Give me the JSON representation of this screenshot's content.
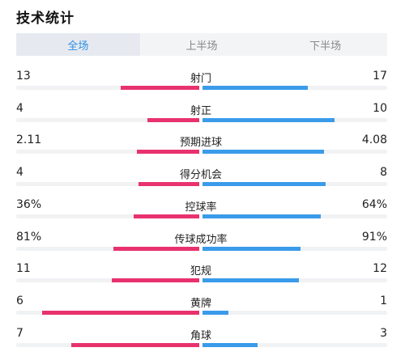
{
  "header": {
    "title": "技术统计"
  },
  "tabs": [
    {
      "label": "全场",
      "active": true
    },
    {
      "label": "上半场",
      "active": false
    },
    {
      "label": "下半场",
      "active": false
    }
  ],
  "colors": {
    "home": "#e8326e",
    "away": "#3a9bea",
    "active_tab": "#2f8fe6"
  },
  "stats": [
    {
      "label": "射门",
      "home": "13",
      "away": "17",
      "home_fill": 0.43,
      "away_fill": 0.57
    },
    {
      "label": "射正",
      "home": "4",
      "away": "10",
      "home_fill": 0.285,
      "away_fill": 0.715
    },
    {
      "label": "预期进球",
      "home": "2.11",
      "away": "4.08",
      "home_fill": 0.34,
      "away_fill": 0.66
    },
    {
      "label": "得分机会",
      "home": "4",
      "away": "8",
      "home_fill": 0.333,
      "away_fill": 0.667
    },
    {
      "label": "控球率",
      "home": "36%",
      "away": "64%",
      "home_fill": 0.36,
      "away_fill": 0.64
    },
    {
      "label": "传球成功率",
      "home": "81%",
      "away": "91%",
      "home_fill": 0.47,
      "away_fill": 0.53
    },
    {
      "label": "犯规",
      "home": "11",
      "away": "12",
      "home_fill": 0.48,
      "away_fill": 0.52
    },
    {
      "label": "黄牌",
      "home": "6",
      "away": "1",
      "home_fill": 0.86,
      "away_fill": 0.14
    },
    {
      "label": "角球",
      "home": "7",
      "away": "3",
      "home_fill": 0.7,
      "away_fill": 0.3
    }
  ]
}
